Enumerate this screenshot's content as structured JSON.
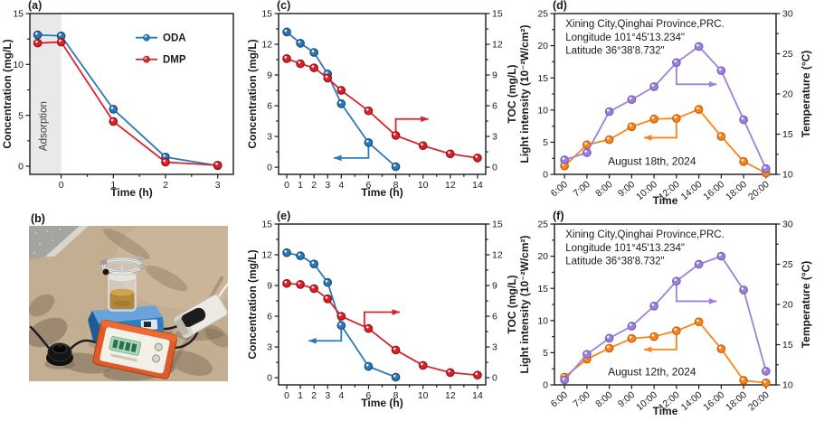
{
  "photo_panel": {
    "label": "(b)",
    "description": "Outdoor sunlight experiment: glass photoreactor with yellow solution on a blue magnetic stirrer, orange light meter with green LCD, black round light sensor and a white logger device on sunlit concrete with tree shadows and a granite curb",
    "colors": {
      "ground": "#c4ae92",
      "ground_light": "#d2bfa2",
      "shadow": "#6e5e4b",
      "granite": "#a6a4a0",
      "granite_light": "#dcdad5",
      "stirrer_blue": "#2e7cc3",
      "stirrer_top": "#6aa3d8",
      "stirrer_dark": "#1d5c99",
      "liquid": "#b3883c",
      "liquid_top": "#cfa64b",
      "glass": "#dfe6ea",
      "meter_body": "#e05a2b",
      "meter_face": "#f3f0e8",
      "lcd": "#a9dcb6",
      "lcd_dark": "#2e6e4e",
      "sensor": "#151515",
      "device_white": "#eceae4",
      "cable": "#1b1b1b"
    }
  },
  "chart_data": [
    {
      "id": "a",
      "panel_label": "(a)",
      "type": "line",
      "xlabel": "Time (h)",
      "ylabel_left": "Concentration (mg/L)",
      "xlim": [
        -0.6,
        3.3
      ],
      "ylim_left": [
        -0.8,
        15
      ],
      "xticks": [
        0,
        1,
        2,
        3
      ],
      "xticks_minor": [
        0.5,
        1.5,
        2.5
      ],
      "yticks_left": [
        0,
        5,
        10,
        15
      ],
      "yticks_minor_left": [
        2.5,
        7.5,
        12.5
      ],
      "shaded_region": {
        "x0": -0.6,
        "x1": 0,
        "color": "#e9e9e9",
        "label": "Adsorption",
        "label_color": "#3d3d3d"
      },
      "legend": [
        {
          "label": "ODA",
          "color": "#2b7ab8"
        },
        {
          "label": "DMP",
          "color": "#d9232b"
        }
      ],
      "series": [
        {
          "name": "ODA",
          "axis": "left",
          "color": "#2b7ab8",
          "marker_stroke": "#18507f",
          "x": [
            -0.45,
            0,
            1,
            2,
            3
          ],
          "y": [
            12.9,
            12.8,
            5.6,
            0.9,
            0.05
          ]
        },
        {
          "name": "DMP",
          "axis": "left",
          "color": "#d9232b",
          "marker_stroke": "#9c1016",
          "x": [
            -0.45,
            0,
            1,
            2,
            3
          ],
          "y": [
            12.1,
            12.2,
            4.4,
            0.4,
            0.1
          ]
        }
      ]
    },
    {
      "id": "c",
      "panel_label": "(c)",
      "type": "line",
      "xlabel": "Time (h)",
      "ylabel_left": "Concentration (mg/L)",
      "ylabel_right": "TOC (mg/L)",
      "xlim": [
        -0.6,
        14.6
      ],
      "ylim_left": [
        -0.7,
        15
      ],
      "ylim_right": [
        -0.7,
        15
      ],
      "xticks": [
        0,
        1,
        2,
        3,
        4,
        6,
        8,
        10,
        12,
        14
      ],
      "xticks_minor": [
        5,
        7,
        9,
        11,
        13
      ],
      "yticks_left": [
        0,
        3,
        6,
        9,
        12,
        15
      ],
      "yticks_minor_left": [
        1.5,
        4.5,
        7.5,
        10.5,
        13.5
      ],
      "yticks_right": [
        0,
        3,
        6,
        9,
        12,
        15
      ],
      "yticks_minor_right": [
        1.5,
        4.5,
        7.5,
        10.5,
        13.5
      ],
      "series": [
        {
          "name": "Concentration",
          "axis": "left",
          "color": "#2b7ab8",
          "marker_stroke": "#18507f",
          "x": [
            0,
            1,
            2,
            3,
            4,
            6,
            8
          ],
          "y": [
            13.2,
            12.1,
            11.2,
            9.1,
            6.2,
            2.4,
            0.05
          ]
        },
        {
          "name": "TOC",
          "axis": "right",
          "color": "#d9232b",
          "marker_stroke": "#9c1016",
          "x": [
            0,
            1,
            2,
            3,
            4,
            6,
            8,
            10,
            12,
            14
          ],
          "y": [
            10.6,
            10.1,
            9.7,
            8.7,
            7.5,
            5.5,
            3.1,
            2.1,
            1.3,
            0.9
          ]
        }
      ],
      "arrows": [
        {
          "color": "#2b7ab8",
          "axis": "left",
          "points": [
            [
              6,
              2.4
            ],
            [
              6,
              0.9
            ],
            [
              3.45,
              0.9
            ]
          ]
        },
        {
          "color": "#d9232b",
          "axis": "right",
          "points": [
            [
              8,
              3.1
            ],
            [
              8,
              4.7
            ],
            [
              10.4,
              4.7
            ]
          ]
        }
      ]
    },
    {
      "id": "d",
      "panel_label": "(d)",
      "type": "line",
      "xlabel": "Time",
      "ylabel_left": "Light intensity (10⁻²W/cm²)",
      "ylabel_right": "Temperature (°C)",
      "x_categories": [
        "6:00",
        "7:00",
        "8:00",
        "9:00",
        "10:00",
        "12:00",
        "14:00",
        "16:00",
        "18:00",
        "20:00"
      ],
      "ylim_left": [
        0,
        25
      ],
      "ylim_right": [
        10,
        30
      ],
      "yticks_left": [
        0,
        5,
        10,
        15,
        20,
        25
      ],
      "yticks_minor_left": [
        2.5,
        7.5,
        12.5,
        17.5,
        22.5
      ],
      "yticks_right": [
        10,
        15,
        20,
        25,
        30
      ],
      "yticks_minor_right": [
        12.5,
        17.5,
        22.5,
        27.5
      ],
      "annotations": [
        {
          "text": "Xining City,Qinghai Province,PRC.",
          "fx": 0.05,
          "fy": 0.085,
          "anchor": "start",
          "size": 11.5
        },
        {
          "text": "Longitude 101°45'13.234\"",
          "fx": 0.05,
          "fy": 0.168,
          "anchor": "start",
          "size": 11.5
        },
        {
          "text": "Latitude 36°38'8.732\"",
          "fx": 0.05,
          "fy": 0.251,
          "anchor": "start",
          "size": 11.5
        },
        {
          "text": "August 18th, 2024",
          "fx": 0.44,
          "fy": 0.94,
          "anchor": "middle",
          "size": 12
        }
      ],
      "series": [
        {
          "name": "Light intensity",
          "axis": "left",
          "color": "#f8861d",
          "marker_stroke": "#cd5f06",
          "x": [
            0,
            1,
            2,
            3,
            4,
            5,
            6,
            7,
            8,
            9
          ],
          "y": [
            1.3,
            4.6,
            5.4,
            7.4,
            8.6,
            8.7,
            10.1,
            5.9,
            2.0,
            0.2
          ]
        },
        {
          "name": "Temperature",
          "axis": "right",
          "color": "#9d82d9",
          "marker_stroke": "#7a5fc0",
          "x": [
            0,
            1,
            2,
            3,
            4,
            5,
            6,
            7,
            8,
            9
          ],
          "y": [
            11.8,
            12.7,
            17.8,
            19.3,
            20.9,
            23.9,
            25.9,
            22.9,
            16.8,
            10.7
          ]
        }
      ],
      "arrows": [
        {
          "color": "#f8861d",
          "axis": "left",
          "points": [
            [
              5,
              8.7
            ],
            [
              5,
              5.7
            ],
            [
              3.55,
              5.7
            ]
          ]
        },
        {
          "color": "#9d82d9",
          "axis": "right",
          "points": [
            [
              5,
              23.9
            ],
            [
              5,
              21.2
            ],
            [
              6.8,
              21.2
            ]
          ]
        }
      ]
    },
    {
      "id": "e",
      "panel_label": "(e)",
      "type": "line",
      "xlabel": "Time (h)",
      "ylabel_left": "Concentration (mg/L)",
      "ylabel_right": "TOC (mg/L)",
      "xlim": [
        -0.6,
        14.6
      ],
      "ylim_left": [
        -0.7,
        15
      ],
      "ylim_right": [
        -0.7,
        15
      ],
      "xticks": [
        0,
        1,
        2,
        3,
        4,
        6,
        8,
        10,
        12,
        14
      ],
      "xticks_minor": [
        5,
        7,
        9,
        11,
        13
      ],
      "yticks_left": [
        0,
        3,
        6,
        9,
        12,
        15
      ],
      "yticks_minor_left": [
        1.5,
        4.5,
        7.5,
        10.5,
        13.5
      ],
      "yticks_right": [
        0,
        3,
        6,
        9,
        12,
        15
      ],
      "yticks_minor_right": [
        1.5,
        4.5,
        7.5,
        10.5,
        13.5
      ],
      "series": [
        {
          "name": "Concentration",
          "axis": "left",
          "color": "#2b7ab8",
          "marker_stroke": "#18507f",
          "x": [
            0,
            1,
            2,
            3,
            4,
            6,
            8
          ],
          "y": [
            12.2,
            11.9,
            11.1,
            9.3,
            5.1,
            1.1,
            0.05
          ]
        },
        {
          "name": "TOC",
          "axis": "right",
          "color": "#d9232b",
          "marker_stroke": "#9c1016",
          "x": [
            0,
            1,
            2,
            3,
            4,
            6,
            8,
            10,
            12,
            14
          ],
          "y": [
            9.2,
            9.1,
            8.7,
            7.7,
            6.0,
            4.8,
            2.7,
            1.2,
            0.5,
            0.25
          ]
        }
      ],
      "arrows": [
        {
          "color": "#2b7ab8",
          "axis": "left",
          "points": [
            [
              4,
              5.1
            ],
            [
              4,
              3.6
            ],
            [
              1.6,
              3.6
            ]
          ]
        },
        {
          "color": "#d9232b",
          "axis": "right",
          "points": [
            [
              5.7,
              5.0
            ],
            [
              5.7,
              6.4
            ],
            [
              8.3,
              6.4
            ]
          ]
        }
      ]
    },
    {
      "id": "f",
      "panel_label": "(f)",
      "type": "line",
      "xlabel": "Time",
      "ylabel_left": "Light intensity (10⁻²W/cm²)",
      "ylabel_right": "Temperature (°C)",
      "x_categories": [
        "6:00",
        "7:00",
        "8:00",
        "9:00",
        "10:00",
        "12:00",
        "14:00",
        "16:00",
        "18:00",
        "20:00"
      ],
      "ylim_left": [
        0,
        25
      ],
      "ylim_right": [
        10,
        30
      ],
      "yticks_left": [
        0,
        5,
        10,
        15,
        20,
        25
      ],
      "yticks_minor_left": [
        2.5,
        7.5,
        12.5,
        17.5,
        22.5
      ],
      "yticks_right": [
        10,
        15,
        20,
        25,
        30
      ],
      "yticks_minor_right": [
        12.5,
        17.5,
        22.5,
        27.5
      ],
      "annotations": [
        {
          "text": "Xining City,Qinghai Province,PRC.",
          "fx": 0.05,
          "fy": 0.085,
          "anchor": "start",
          "size": 11.5
        },
        {
          "text": "Longitude 101°45'13.234\"",
          "fx": 0.05,
          "fy": 0.168,
          "anchor": "start",
          "size": 11.5
        },
        {
          "text": "Latitude 36°38'8.732\"",
          "fx": 0.05,
          "fy": 0.251,
          "anchor": "start",
          "size": 11.5
        },
        {
          "text": "August 12th, 2024",
          "fx": 0.44,
          "fy": 0.94,
          "anchor": "middle",
          "size": 12
        }
      ],
      "series": [
        {
          "name": "Light intensity",
          "axis": "left",
          "color": "#f8861d",
          "marker_stroke": "#cd5f06",
          "x": [
            0,
            1,
            2,
            3,
            4,
            5,
            6,
            7,
            8,
            9
          ],
          "y": [
            1.2,
            4.0,
            5.7,
            7.2,
            7.5,
            8.4,
            9.8,
            5.6,
            0.7,
            0.3
          ]
        },
        {
          "name": "Temperature",
          "axis": "right",
          "color": "#9d82d9",
          "marker_stroke": "#7a5fc0",
          "x": [
            0,
            1,
            2,
            3,
            4,
            5,
            6,
            7,
            8,
            9
          ],
          "y": [
            10.6,
            13.8,
            15.8,
            17.3,
            19.8,
            22.9,
            25.0,
            26.0,
            21.8,
            11.7
          ]
        }
      ],
      "arrows": [
        {
          "color": "#f8861d",
          "axis": "left",
          "points": [
            [
              5,
              8.4
            ],
            [
              5,
              5.5
            ],
            [
              3.55,
              5.5
            ]
          ]
        },
        {
          "color": "#9d82d9",
          "axis": "right",
          "points": [
            [
              5,
              22.9
            ],
            [
              5,
              20.4
            ],
            [
              6.8,
              20.4
            ]
          ]
        }
      ]
    }
  ]
}
